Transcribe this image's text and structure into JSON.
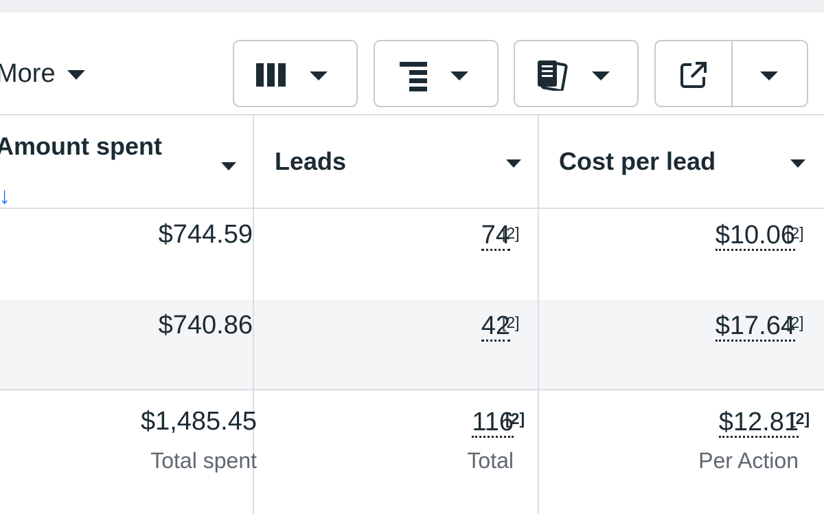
{
  "toolbar": {
    "more_label": "More",
    "columns_icon": "columns-icon",
    "breakdown_icon": "breakdown-icon",
    "reports_icon": "reports-icon",
    "export_icon": "export-icon"
  },
  "table": {
    "columns": [
      {
        "label": "Amount spent",
        "sorted": "descending"
      },
      {
        "label": "Leads"
      },
      {
        "label": "Cost per lead"
      }
    ],
    "sort_arrow": "↓",
    "rows": [
      {
        "amount_spent": "$744.59",
        "leads": "74",
        "leads_note": "[2]",
        "cost_per_lead": "$10.06",
        "cpl_note": "[2]"
      },
      {
        "amount_spent": "$740.86",
        "leads": "42",
        "leads_note": "[2]",
        "cost_per_lead": "$17.64",
        "cpl_note": "[2]"
      }
    ],
    "totals": {
      "amount_spent": "$1,485.45",
      "amount_spent_label": "Total spent",
      "leads": "116",
      "leads_note": "[2]",
      "leads_label": "Total",
      "cost_per_lead": "$12.81",
      "cpl_note": "[2]",
      "cpl_label": "Per Action"
    }
  },
  "colors": {
    "accent": "#1877f2",
    "text": "#1c2b33",
    "muted": "#606770",
    "border": "#dadde1",
    "alt_row": "#f4f5f7"
  }
}
